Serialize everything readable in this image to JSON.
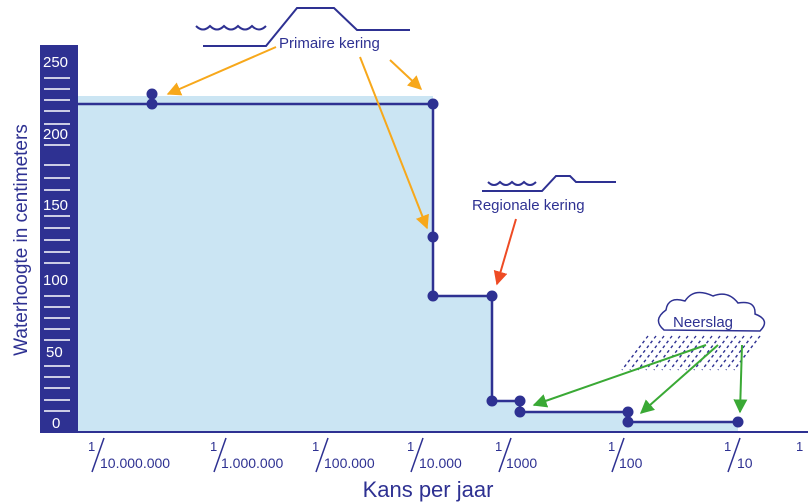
{
  "y_axis": {
    "label": "Waterhoogte in centimeters",
    "ticks": [
      "250",
      "200",
      "150",
      "100",
      "50",
      "0"
    ]
  },
  "x_axis": {
    "label": "Kans per jaar",
    "ticks": [
      {
        "num": "1",
        "den": "10.000.000"
      },
      {
        "num": "1",
        "den": "1.000.000"
      },
      {
        "num": "1",
        "den": "100.000"
      },
      {
        "num": "1",
        "den": "10.000"
      },
      {
        "num": "1",
        "den": "1000"
      },
      {
        "num": "1",
        "den": "100"
      },
      {
        "num": "1",
        "den": "10"
      },
      {
        "num": "1",
        "den": ""
      }
    ]
  },
  "annotations": {
    "primary": "Primaire kering",
    "regional": "Regionale kering",
    "rain": "Neerslag"
  },
  "colors": {
    "axis_bar": "#2e3192",
    "line": "#2e3192",
    "fill": "#cbe5f3",
    "orange_arrow": "#f7a81b",
    "red_arrow": "#ee4b24",
    "green_arrow": "#3aa935"
  }
}
